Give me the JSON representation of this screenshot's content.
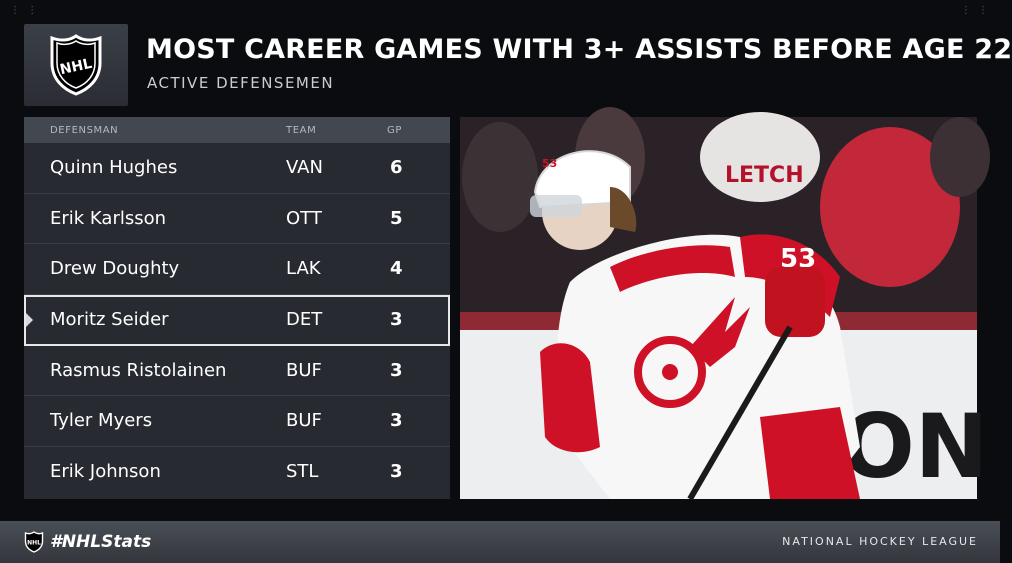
{
  "header": {
    "title": "MOST CAREER GAMES WITH 3+ ASSISTS BEFORE AGE 22",
    "subtitle": "ACTIVE DEFENSEMEN"
  },
  "table": {
    "columns": [
      "DEFENSMAN",
      "TEAM",
      "GP"
    ],
    "rows": [
      {
        "name": "Quinn Hughes",
        "team": "VAN",
        "gp": "6"
      },
      {
        "name": "Erik Karlsson",
        "team": "OTT",
        "gp": "5"
      },
      {
        "name": "Drew Doughty",
        "team": "LAK",
        "gp": "4"
      },
      {
        "name": "Moritz Seider",
        "team": "DET",
        "gp": "3"
      },
      {
        "name": "Rasmus Ristolainen",
        "team": "BUF",
        "gp": "3"
      },
      {
        "name": "Tyler Myers",
        "team": "BUF",
        "gp": "3"
      },
      {
        "name": "Erik Johnson",
        "team": "STL",
        "gp": "3"
      }
    ],
    "highlighted_row": "Moritz Seider"
  },
  "photo": {
    "jersey_number": "53",
    "board_text": "ON"
  },
  "footer": {
    "hashtag": "#NHLStats",
    "league": "NATIONAL HOCKEY LEAGUE"
  },
  "colors": {
    "background": "#0b0c0f",
    "table_bg": "#272a30",
    "header_bg": "#43474f",
    "red_wings_red": "#ce1126"
  },
  "icons": [
    "nhl-shield-icon",
    "row-pointer-icon"
  ]
}
